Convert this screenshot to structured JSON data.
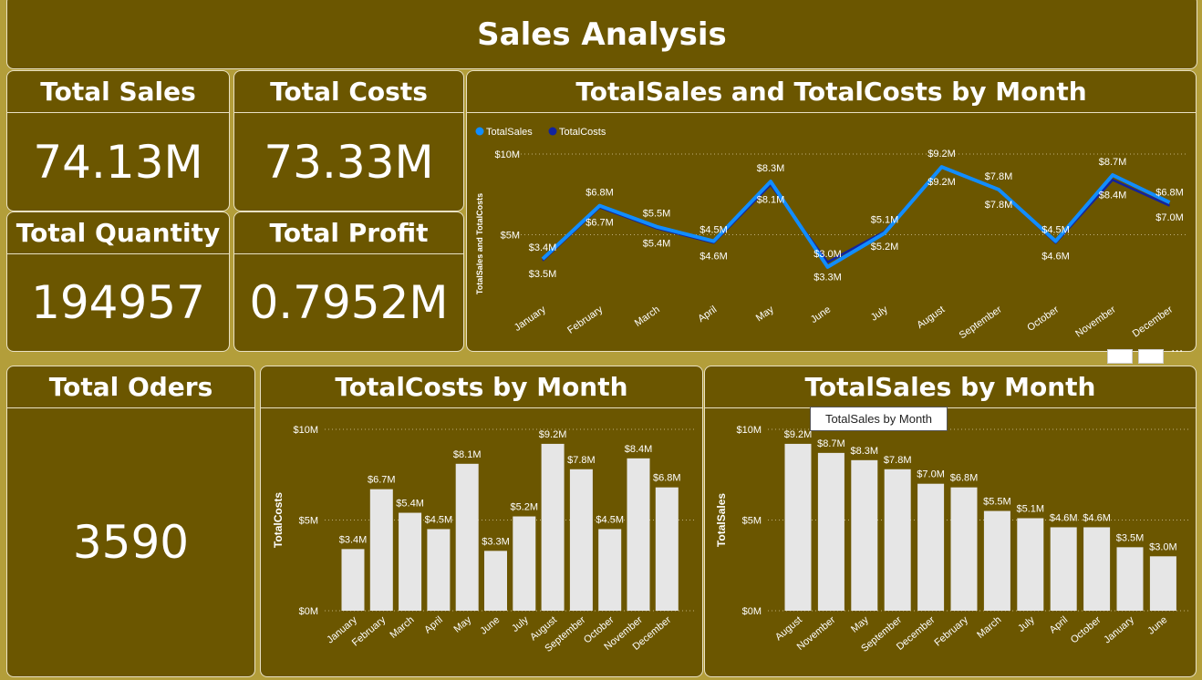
{
  "dashboard": {
    "title": "Sales Analysis"
  },
  "kpis": {
    "total_sales": {
      "label": "Total Sales",
      "value": "74.13M"
    },
    "total_costs": {
      "label": "Total Costs",
      "value": "73.33M"
    },
    "total_quantity": {
      "label": "Total Quantity",
      "value": "194957"
    },
    "total_profit": {
      "label": "Total Profit",
      "value": "0.7952M"
    },
    "total_orders": {
      "label": "Total Oders",
      "value": "3590"
    }
  },
  "tooltip": {
    "text": "TotalSales by Month"
  },
  "colors": {
    "background": "#b39e3a",
    "panel": "#6b5600",
    "bar": "#e6e6e6",
    "sales_line": "#118dff",
    "costs_line": "#12239e"
  },
  "chart_data": [
    {
      "id": "line",
      "type": "line",
      "title": "TotalSales and TotalCosts by Month",
      "xlabel": "",
      "ylabel": "TotalSales and TotalCosts",
      "ylim": [
        0,
        10000000
      ],
      "yticks": [
        "$10M",
        "$5M"
      ],
      "legend": "top-left",
      "categories": [
        "January",
        "February",
        "March",
        "April",
        "May",
        "June",
        "July",
        "August",
        "September",
        "October",
        "November",
        "December"
      ],
      "series": [
        {
          "name": "TotalSales",
          "values": [
            3.5,
            6.8,
            5.5,
            4.6,
            8.3,
            3.0,
            5.1,
            9.2,
            7.8,
            4.6,
            8.7,
            7.0
          ],
          "labels": [
            "$3.5M",
            "$6.8M",
            "$5.5M",
            "$4.6M",
            "$8.3M",
            "$3.0M",
            "$5.1M",
            "$9.2M",
            "$7.8M",
            "$4.6M",
            "$8.7M",
            "$7.0M"
          ],
          "label_pos": [
            "below",
            "above",
            "above",
            "below",
            "above",
            "above",
            "above",
            "below",
            "above",
            "below",
            "above",
            "below"
          ]
        },
        {
          "name": "TotalCosts",
          "values": [
            3.4,
            6.7,
            5.4,
            4.5,
            8.1,
            3.3,
            5.2,
            9.2,
            7.8,
            4.5,
            8.4,
            6.8
          ],
          "labels": [
            "$3.4M",
            "$6.7M",
            "$5.4M",
            "$4.5M",
            "$8.1M",
            "$3.3M",
            "$5.2M",
            "$9.2M",
            "$7.8M",
            "$4.5M",
            "$8.4M",
            "$6.8M"
          ],
          "label_pos": [
            "above",
            "below",
            "below",
            "above",
            "below",
            "below",
            "below",
            "above",
            "below",
            "above",
            "below",
            "above"
          ]
        }
      ]
    },
    {
      "id": "costs",
      "type": "bar",
      "title": "TotalCosts by Month",
      "xlabel": "",
      "ylabel": "TotalCosts",
      "ylim": [
        0,
        10000000
      ],
      "yticks": [
        "$10M",
        "$5M",
        "$0M"
      ],
      "categories": [
        "January",
        "February",
        "March",
        "April",
        "May",
        "June",
        "July",
        "August",
        "September",
        "October",
        "November",
        "December"
      ],
      "values": [
        3.4,
        6.7,
        5.4,
        4.5,
        8.1,
        3.3,
        5.2,
        9.2,
        7.8,
        4.5,
        8.4,
        6.8
      ],
      "labels": [
        "$3.4M",
        "$6.7M",
        "$5.4M",
        "$4.5M",
        "$8.1M",
        "$3.3M",
        "$5.2M",
        "$9.2M",
        "$7.8M",
        "$4.5M",
        "$8.4M",
        "$6.8M"
      ]
    },
    {
      "id": "sales",
      "type": "bar",
      "title": "TotalSales by Month",
      "xlabel": "",
      "ylabel": "TotalSales",
      "ylim": [
        0,
        10000000
      ],
      "yticks": [
        "$10M",
        "$5M",
        "$0M"
      ],
      "categories": [
        "August",
        "November",
        "May",
        "September",
        "December",
        "February",
        "March",
        "July",
        "April",
        "October",
        "January",
        "June"
      ],
      "values": [
        9.2,
        8.7,
        8.3,
        7.8,
        7.0,
        6.8,
        5.5,
        5.1,
        4.6,
        4.6,
        3.5,
        3.0
      ],
      "labels": [
        "$9.2M",
        "$8.7M",
        "$8.3M",
        "$7.8M",
        "$7.0M",
        "$6.8M",
        "$5.5M",
        "$5.1M",
        "$4.6M",
        "$4.6M",
        "$3.5M",
        "$3.0M"
      ]
    }
  ]
}
